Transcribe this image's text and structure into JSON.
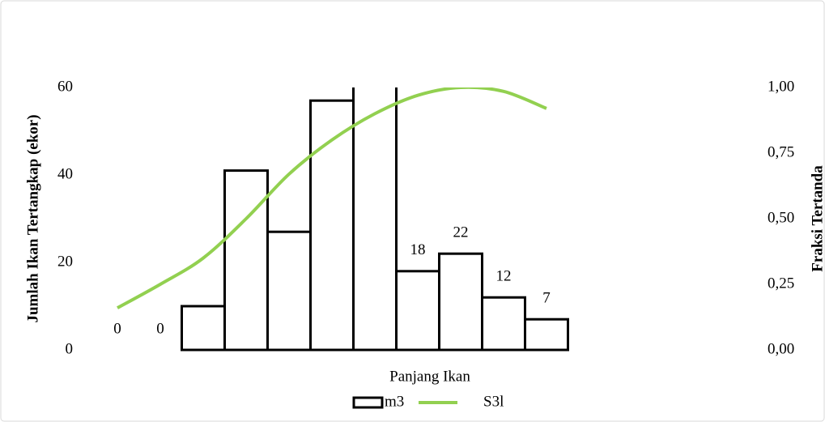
{
  "chart_data": {
    "type": "bar",
    "x_label": "Panjang Ikan",
    "y_label": "Jumlah Ikan Tertangkap (ekor)",
    "y2_label": "Fraksi Tertanda",
    "categories": [
      null,
      null,
      null,
      null,
      null,
      null,
      null,
      null,
      null,
      null,
      null
    ],
    "series": [
      {
        "name": "m3",
        "type": "bar",
        "color": "#000000",
        "values": [
          0,
          0,
          10,
          41,
          27,
          57,
          65,
          18,
          22,
          12,
          7
        ],
        "show_labels": [
          true,
          true,
          false,
          false,
          false,
          false,
          false,
          true,
          true,
          true,
          true
        ]
      },
      {
        "name": "S3l",
        "type": "line",
        "color": "#92d050",
        "axis": "y2",
        "values": [
          0.16,
          0.25,
          0.35,
          0.5,
          0.67,
          0.8,
          0.9,
          0.97,
          1.0,
          0.985,
          0.92
        ]
      }
    ],
    "ylim": [
      0,
      60
    ],
    "yticks": [
      0,
      20,
      40,
      60
    ],
    "y2lim": [
      0,
      1
    ],
    "y2ticks": [
      {
        "value": 0,
        "label": "0,00"
      },
      {
        "value": 0.25,
        "label": "0,25"
      },
      {
        "value": 0.5,
        "label": "0,50"
      },
      {
        "value": 0.75,
        "label": "0,75"
      },
      {
        "value": 1,
        "label": "1,00"
      }
    ],
    "legend": "bottom"
  }
}
